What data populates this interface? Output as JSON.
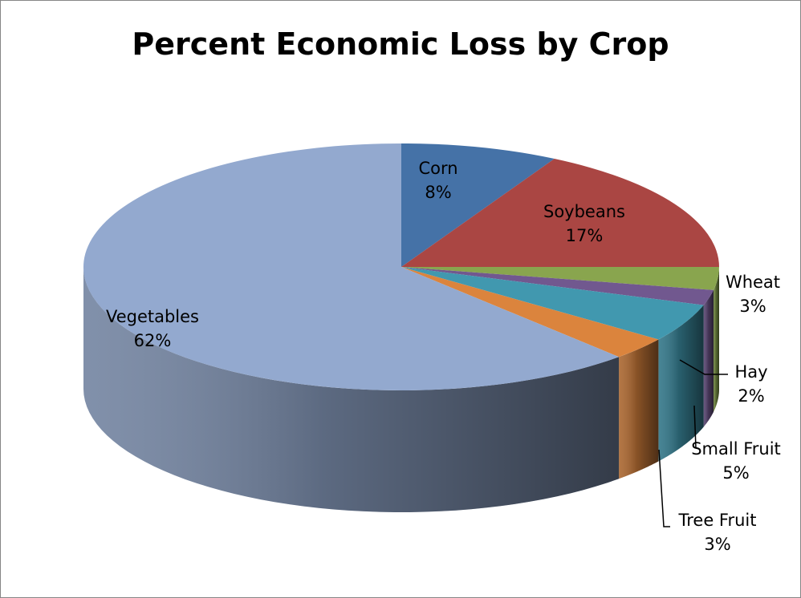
{
  "chart_data": {
    "type": "pie",
    "title": "Percent Economic Loss by Crop",
    "categories": [
      "Corn",
      "Soybeans",
      "Wheat",
      "Hay",
      "Small Fruit",
      "Tree Fruit",
      "Vegetables"
    ],
    "values": [
      8,
      17,
      3,
      2,
      5,
      3,
      62
    ],
    "value_labels": [
      "8%",
      "17%",
      "3%",
      "2%",
      "5%",
      "3%",
      "62%"
    ],
    "colors": [
      "#4572a7",
      "#aa4643",
      "#89a54e",
      "#71588f",
      "#4198af",
      "#db843d",
      "#93a9cf"
    ],
    "three_d": true,
    "legend": "none"
  }
}
